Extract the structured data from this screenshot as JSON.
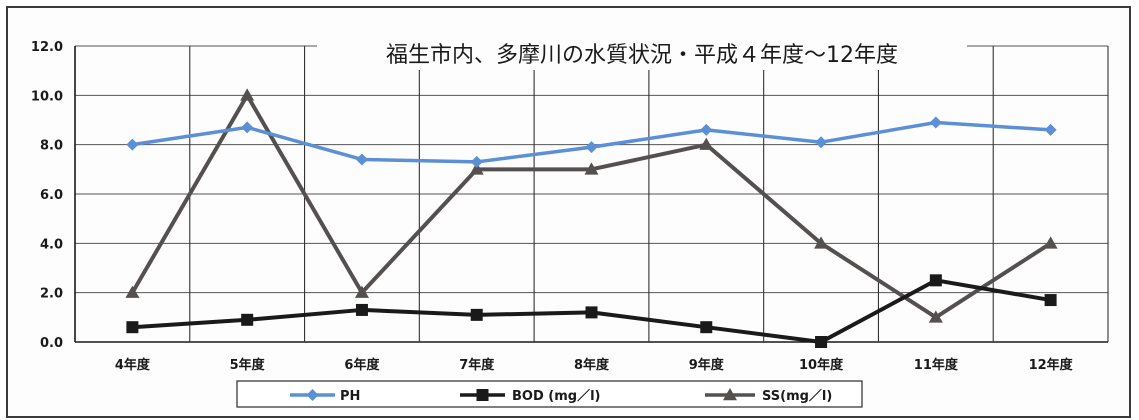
{
  "chart_data": {
    "type": "line",
    "title": "福生市内、多摩川の水質状況・平成４年度～12年度",
    "categories": [
      "4年度",
      "5年度",
      "6年度",
      "7年度",
      "8年度",
      "9年度",
      "10年度",
      "11年度",
      "12年度"
    ],
    "ylim": [
      0,
      12
    ],
    "yticks": [
      "0.0",
      "2.0",
      "4.0",
      "6.0",
      "8.0",
      "10.0",
      "12.0"
    ],
    "grid": "vertical and horizontal",
    "legend_position": "bottom",
    "series": [
      {
        "name": "PH",
        "color": "#5b8fd6",
        "marker": "diamond",
        "values": [
          8.0,
          8.7,
          7.4,
          7.3,
          7.9,
          8.6,
          8.1,
          8.9,
          8.6
        ]
      },
      {
        "name": "BOD (mg／l)",
        "color": "#1a1a1a",
        "marker": "square",
        "values": [
          0.6,
          0.9,
          1.3,
          1.1,
          1.2,
          0.6,
          0.0,
          2.5,
          1.7
        ]
      },
      {
        "name": "SS(mg／l)",
        "color": "#555050",
        "marker": "triangle",
        "values": [
          2.0,
          10.0,
          2.0,
          7.0,
          7.0,
          8.0,
          4.0,
          1.0,
          4.0
        ]
      }
    ]
  }
}
